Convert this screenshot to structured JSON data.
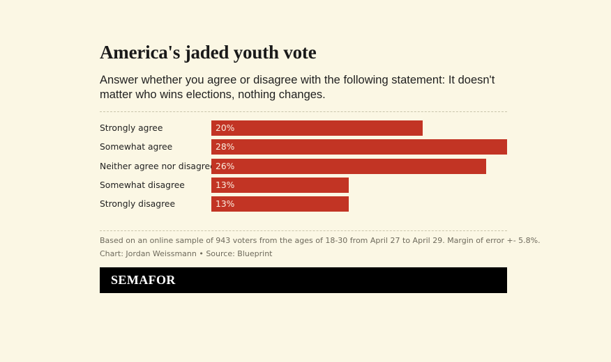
{
  "title": "America's jaded youth vote",
  "subtitle": "Answer whether you agree or disagree with the following statement: It doesn't matter who wins elections, nothing changes.",
  "footnote": "Based on an online sample of 943 voters from the ages of 18-30 from April 27 to April 29. Margin of error +- 5.8%.",
  "credit": "Chart: Jordan Weissmann • Source: Blueprint",
  "brand": "SEMAFOR",
  "colors": {
    "background": "#fbf7e4",
    "bar": "#c23424",
    "brand_bar": "#000000"
  },
  "chart_data": {
    "type": "bar",
    "orientation": "horizontal",
    "categories": [
      "Strongly agree",
      "Somewhat agree",
      "Neither agree nor disagree",
      "Somewhat disagree",
      "Strongly disagree"
    ],
    "values": [
      20,
      28,
      26,
      13,
      13
    ],
    "value_labels": [
      "20%",
      "28%",
      "26%",
      "13%",
      "13%"
    ],
    "unit": "%",
    "xlim": [
      0,
      28
    ]
  }
}
